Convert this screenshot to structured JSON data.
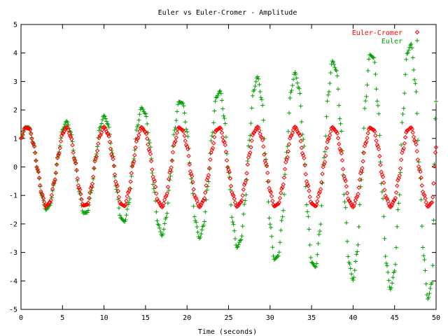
{
  "chart_data": {
    "type": "scatter",
    "title": "Euler vs Euler-Cromer - Amplitude",
    "xlabel": "Time (seconds)",
    "ylabel": "",
    "xlim": [
      0,
      50
    ],
    "ylim": [
      -5,
      5
    ],
    "x_ticks": [
      "0",
      "5",
      "10",
      "15",
      "20",
      "25",
      "30",
      "35",
      "40",
      "45",
      "50"
    ],
    "y_ticks": [
      "-5",
      "-4",
      "-3",
      "-2",
      "-1",
      "0",
      "1",
      "2",
      "3",
      "4",
      "5"
    ],
    "grid": false,
    "legend_position": "top-right",
    "series": [
      {
        "name": "Euler-Cromer",
        "color": "#ff0000",
        "marker": "diamond",
        "x": [
          0,
          0.5,
          1.0,
          1.5,
          2.0,
          2.5,
          3.0,
          3.5,
          4.0,
          4.5,
          5.0,
          5.5,
          6.0,
          6.5,
          7.0,
          7.5,
          8.0,
          8.5,
          9.0,
          9.5,
          10.0,
          10.5,
          11.0,
          11.5,
          12.0,
          12.5,
          13.0,
          13.5,
          14.0,
          14.5,
          15.0,
          15.5,
          16.0,
          16.5,
          17.0,
          17.5,
          18.0,
          18.5,
          19.0,
          19.5,
          20.0,
          20.5,
          21.0,
          21.5,
          22.0,
          22.5,
          23.0,
          23.5,
          24.0,
          24.5,
          25.0,
          25.5,
          26.0,
          26.5,
          27.0,
          27.5,
          28.0,
          28.5,
          29.0,
          29.5,
          30.0,
          30.5,
          31.0,
          31.5,
          32.0,
          32.5,
          33.0,
          33.5,
          34.0,
          34.5,
          35.0,
          35.5,
          36.0,
          36.5,
          37.0,
          37.5,
          38.0,
          38.5,
          39.0,
          39.5,
          40.0,
          40.5,
          41.0,
          41.5,
          42.0,
          42.5,
          43.0,
          43.5,
          44.0,
          44.5,
          45.0,
          45.5,
          46.0,
          46.5,
          47.0,
          47.5,
          48.0,
          48.5,
          49.0,
          49.5,
          50.0
        ],
        "y": [
          1.0,
          1.373,
          1.351,
          0.804,
          -0.09,
          -0.941,
          -1.395,
          -1.236,
          -0.529,
          0.403,
          1.165,
          1.411,
          1.057,
          0.218,
          -0.737,
          -1.351,
          -1.32,
          -0.683,
          0.29,
          1.095,
          1.413,
          1.149,
          0.371,
          -0.604,
          -1.298,
          -1.372,
          -0.85,
          0.114,
          0.977,
          1.395,
          1.228,
          0.551,
          -0.438,
          -1.197,
          -1.411,
          -1.017,
          -0.111,
          0.846,
          1.384,
          1.291,
          0.718,
          -0.247,
          -1.071,
          -1.412,
          -1.178,
          -0.38,
          0.595,
          1.289,
          1.375,
          0.864,
          -0.102,
          -0.97,
          -1.396,
          -1.235,
          -0.564,
          0.428,
          1.189,
          1.411,
          1.03,
          0.123,
          -0.836,
          -1.38,
          -1.298,
          -0.708,
          0.259,
          1.081,
          1.411,
          1.172,
          0.405,
          -0.602,
          -1.285,
          -1.378,
          -0.874,
          0.09,
          0.962,
          1.395,
          1.241,
          0.574,
          -0.418,
          -1.183,
          -1.411,
          -1.038,
          -0.135,
          0.826,
          1.376,
          1.303,
          0.72,
          -0.27,
          -1.089,
          -1.41,
          -1.165,
          -0.393,
          0.59,
          1.278,
          1.381,
          0.883,
          -0.078,
          -0.954,
          -1.393,
          -1.246,
          0.69
        ]
      },
      {
        "name": "Euler",
        "color": "#00a000",
        "marker": "plus",
        "x": [
          0,
          0.5,
          1.0,
          1.5,
          2.0,
          2.5,
          3.0,
          3.5,
          4.0,
          4.5,
          5.0,
          5.5,
          6.0,
          6.5,
          7.0,
          7.5,
          8.0,
          8.5,
          9.0,
          9.5,
          10.0,
          10.5,
          11.0,
          11.5,
          12.0,
          12.5,
          13.0,
          13.5,
          14.0,
          14.5,
          15.0,
          15.5,
          16.0,
          16.5,
          17.0,
          17.5,
          18.0,
          18.5,
          19.0,
          19.5,
          20.0,
          20.5,
          21.0,
          21.5,
          22.0,
          22.5,
          23.0,
          23.5,
          24.0,
          24.5,
          25.0,
          25.5,
          26.0,
          26.5,
          27.0,
          27.5,
          28.0,
          28.5,
          29.0,
          29.5,
          30.0,
          30.5,
          31.0,
          31.5,
          32.0,
          32.5,
          33.0,
          33.5,
          34.0,
          34.5,
          35.0,
          35.5,
          36.0,
          36.5,
          37.0,
          37.5,
          38.0,
          38.5,
          39.0,
          39.5,
          40.0,
          40.5,
          41.0,
          41.5,
          42.0,
          42.5,
          43.0,
          43.5,
          44.0,
          44.5,
          45.0,
          45.5,
          46.0,
          46.5,
          47.0,
          47.5,
          48.0,
          48.5,
          49.0,
          49.5,
          50.0
        ],
        "y": [
          1.0,
          1.397,
          1.389,
          0.836,
          -0.094,
          -1.001,
          -1.502,
          -1.342,
          -0.579,
          0.446,
          1.307,
          1.606,
          1.219,
          0.255,
          -0.871,
          -1.614,
          -1.597,
          -0.836,
          0.36,
          1.378,
          1.803,
          1.488,
          0.485,
          -0.788,
          -1.787,
          -1.917,
          -1.254,
          0.163,
          1.411,
          2.081,
          1.868,
          0.847,
          -0.766,
          -2.008,
          -2.413,
          -1.767,
          -0.324,
          1.289,
          2.288,
          2.242,
          1.227,
          -0.422,
          -1.884,
          -2.508,
          -2.045,
          -0.684,
          1.086,
          2.432,
          2.669,
          1.705,
          -0.195,
          -1.932,
          -2.828,
          -2.554,
          -1.18,
          0.939,
          2.661,
          3.166,
          2.363,
          0.271,
          -2.01,
          -3.247,
          -3.124,
          -1.747,
          0.52,
          2.621,
          3.317,
          2.748,
          0.972,
          -1.57,
          -3.352,
          -3.51,
          -2.252,
          0.326,
          2.524,
          3.719,
          3.376,
          1.516,
          -1.225,
          -3.348,
          -3.971,
          -2.973,
          -0.452,
          2.319,
          3.938,
          3.832,
          2.153,
          -0.874,
          -3.378,
          -4.304,
          -3.648,
          -1.275,
          1.856,
          3.978,
          4.312,
          2.93,
          -0.117,
          -3.113,
          -4.632,
          -4.067,
          2.3
        ]
      }
    ]
  }
}
